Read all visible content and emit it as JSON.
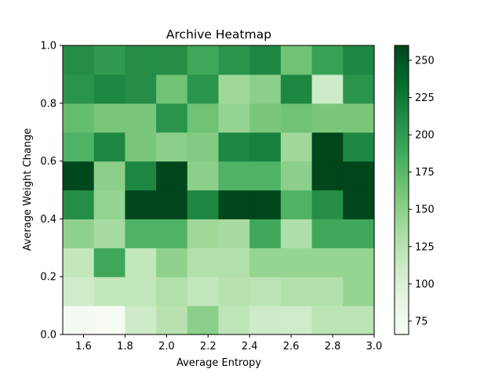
{
  "chart_data": {
    "type": "heatmap",
    "title": "Archive Heatmap",
    "xlabel": "Average Entropy",
    "ylabel": "Average Weight Change",
    "xlim": [
      1.5,
      3.0
    ],
    "ylim": [
      0.0,
      1.0
    ],
    "x_ticks": [
      "1.6",
      "1.8",
      "2.0",
      "2.2",
      "2.4",
      "2.6",
      "2.8",
      "3.0"
    ],
    "y_ticks": [
      "0.0",
      "0.2",
      "0.4",
      "0.6",
      "0.8",
      "1.0"
    ],
    "x_tick_values": [
      1.6,
      1.8,
      2.0,
      2.2,
      2.4,
      2.6,
      2.8,
      3.0
    ],
    "y_tick_values": [
      0.0,
      0.2,
      0.4,
      0.6,
      0.8,
      1.0
    ],
    "colormap": "Greens",
    "colorbar": {
      "range": [
        66,
        260
      ],
      "ticks": [
        "75",
        "100",
        "125",
        "150",
        "175",
        "200",
        "225",
        "250"
      ],
      "tick_values": [
        75,
        100,
        125,
        150,
        175,
        200,
        225,
        250
      ]
    },
    "grid": false,
    "rows_note": "bottom row first; each row spans x 1.5 to 3.0 in 10 bins; rows span y 0.0 to 1.0 in 10 bins",
    "values": [
      [
        70,
        68,
        110,
        125,
        150,
        120,
        110,
        108,
        122,
        122
      ],
      [
        108,
        118,
        118,
        128,
        118,
        125,
        122,
        128,
        128,
        145
      ],
      [
        118,
        190,
        118,
        148,
        128,
        128,
        145,
        145,
        145,
        145
      ],
      [
        148,
        135,
        180,
        180,
        140,
        135,
        190,
        130,
        190,
        190
      ],
      [
        210,
        145,
        258,
        258,
        215,
        258,
        258,
        180,
        210,
        258
      ],
      [
        258,
        150,
        215,
        258,
        150,
        180,
        180,
        150,
        258,
        258
      ],
      [
        180,
        215,
        160,
        150,
        155,
        215,
        220,
        140,
        258,
        215
      ],
      [
        170,
        160,
        160,
        205,
        165,
        145,
        160,
        165,
        160,
        160
      ],
      [
        205,
        215,
        210,
        165,
        205,
        140,
        150,
        215,
        110,
        205
      ],
      [
        210,
        200,
        210,
        210,
        190,
        205,
        215,
        165,
        195,
        215
      ]
    ]
  }
}
